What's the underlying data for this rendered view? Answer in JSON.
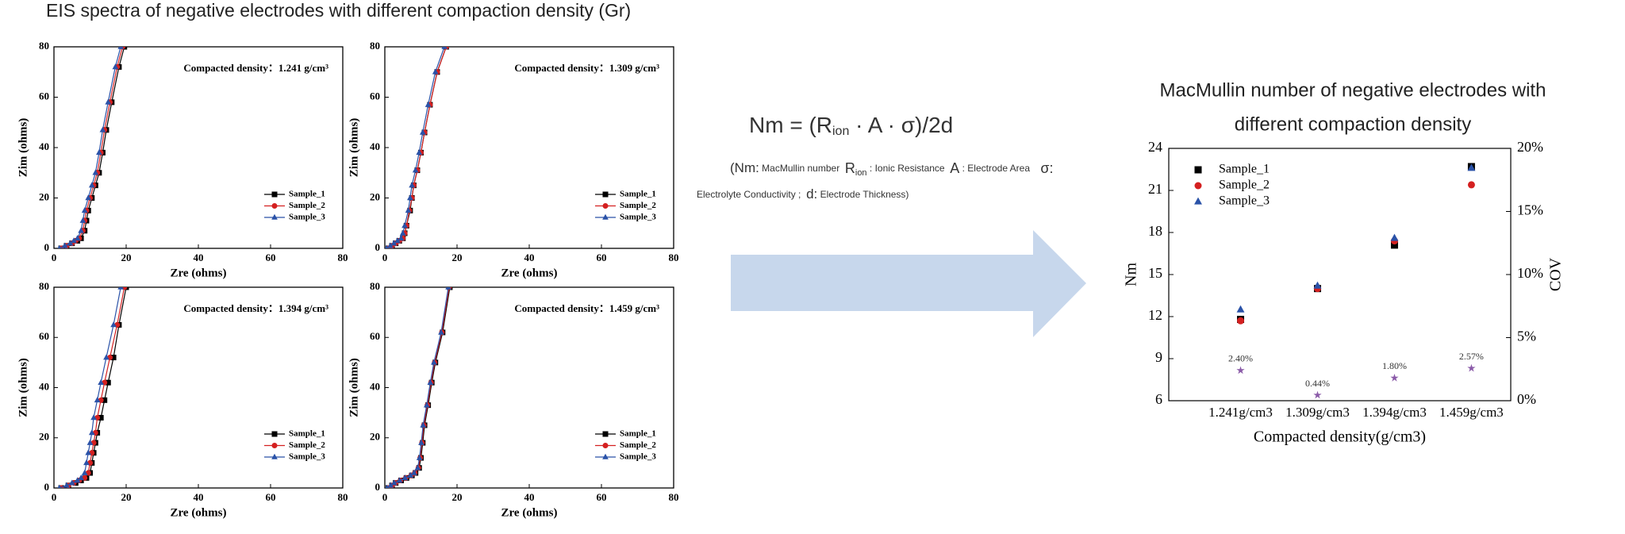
{
  "title": "EIS spectra of negative electrodes with different compaction density (Gr)",
  "formula": {
    "parts": [
      "Nm = (R",
      "ion",
      " · A · σ)/2d"
    ]
  },
  "notes": {
    "line1": [
      "(Nm:",
      " MacMullin number  ",
      "R",
      "ion",
      " : Ionic Resistance  ",
      "A",
      " : Electrode Area    ",
      "σ:"
    ],
    "line2": [
      "Electrolyte Conductivity ;  ",
      "d:",
      " Electrode Thickness)"
    ]
  },
  "chart_data": [
    {
      "type": "line",
      "annotation": "Compacted density：1.241 g/cm³",
      "x_label": "Zre (ohms)",
      "y_label": "Zim (ohms)",
      "xlim": [
        0,
        80
      ],
      "ylim": [
        0,
        80
      ],
      "xticks": [
        0,
        20,
        40,
        60,
        80
      ],
      "yticks": [
        0,
        20,
        40,
        60,
        80
      ],
      "legend": "lower right",
      "series": [
        {
          "name": "Sample_1",
          "color": "#000000",
          "marker": "square",
          "x": [
            2,
            3.5,
            5,
            6.5,
            7.5,
            8.5,
            9,
            9.5,
            10.5,
            11.5,
            12.5,
            13.5,
            14.5,
            16,
            18,
            19.5
          ],
          "values": [
            0,
            1,
            2,
            3,
            4,
            7,
            11,
            15,
            20,
            25,
            30,
            38,
            47,
            58,
            72,
            80
          ]
        },
        {
          "name": "Sample_2",
          "color": "#d42020",
          "marker": "circle",
          "x": [
            2,
            3.5,
            5,
            6,
            7,
            8,
            8.5,
            9,
            10,
            11,
            12,
            13,
            14,
            15.5,
            17.5,
            19
          ],
          "values": [
            0,
            1,
            2,
            3,
            4,
            7,
            11,
            15,
            20,
            25,
            30,
            38,
            47,
            58,
            72,
            80
          ]
        },
        {
          "name": "Sample_3",
          "color": "#2a52a8",
          "marker": "triangle",
          "x": [
            1.5,
            3,
            4.5,
            5.5,
            6.5,
            7.5,
            8,
            8.5,
            9.5,
            10.5,
            11.5,
            12.5,
            13.5,
            15,
            17,
            18.5
          ],
          "values": [
            0,
            1,
            2,
            3,
            4,
            7,
            11,
            15,
            20,
            25,
            30,
            38,
            47,
            58,
            72,
            80
          ]
        }
      ]
    },
    {
      "type": "line",
      "annotation": "Compacted density：1.309 g/cm³",
      "x_label": "Zre (ohms)",
      "y_label": "Zim (ohms)",
      "xlim": [
        0,
        80
      ],
      "ylim": [
        0,
        80
      ],
      "xticks": [
        0,
        20,
        40,
        60,
        80
      ],
      "yticks": [
        0,
        20,
        40,
        60,
        80
      ],
      "legend": "lower right",
      "series": [
        {
          "name": "Sample_1",
          "color": "#000000",
          "marker": "square",
          "x": [
            1,
            2,
            3,
            4,
            5,
            5.5,
            6,
            7,
            7.5,
            8,
            9,
            10,
            11,
            12.5,
            14.5,
            17
          ],
          "values": [
            0,
            1,
            2,
            3,
            4,
            6,
            9,
            15,
            20,
            25,
            31,
            38,
            46,
            57,
            70,
            80
          ]
        },
        {
          "name": "Sample_2",
          "color": "#d42020",
          "marker": "circle",
          "x": [
            1,
            2,
            3,
            4,
            5,
            5.5,
            6,
            6.8,
            7.5,
            8,
            9,
            10,
            11,
            12.5,
            14.5,
            17
          ],
          "values": [
            0,
            1,
            2,
            3,
            4,
            6,
            9,
            15,
            20,
            25,
            31,
            38,
            46,
            57,
            70,
            80
          ]
        },
        {
          "name": "Sample_3",
          "color": "#2a52a8",
          "marker": "triangle",
          "x": [
            0.5,
            1.5,
            2.5,
            3.5,
            4.5,
            5,
            5.5,
            6.5,
            7,
            7.5,
            8.5,
            9.5,
            10.5,
            12,
            14,
            16.5
          ],
          "values": [
            0,
            1,
            2,
            3,
            4,
            6,
            9,
            15,
            20,
            25,
            31,
            38,
            46,
            57,
            70,
            80
          ]
        }
      ]
    },
    {
      "type": "line",
      "annotation": "Compacted density：1.394 g/cm³",
      "x_label": "Zre (ohms)",
      "y_label": "Zim (ohms)",
      "xlim": [
        0,
        80
      ],
      "ylim": [
        0,
        80
      ],
      "xticks": [
        0,
        20,
        40,
        60,
        80
      ],
      "yticks": [
        0,
        20,
        40,
        60,
        80
      ],
      "legend": "lower right",
      "series": [
        {
          "name": "Sample_1",
          "color": "#000000",
          "marker": "square",
          "x": [
            2,
            4,
            6,
            7.5,
            9,
            10,
            10.5,
            11,
            11.5,
            12,
            13,
            14,
            15,
            16.5,
            18,
            20
          ],
          "values": [
            0,
            1,
            2,
            3,
            4,
            6,
            10,
            14,
            18,
            22,
            28,
            35,
            42,
            52,
            65,
            80
          ]
        },
        {
          "name": "Sample_2",
          "color": "#d42020",
          "marker": "circle",
          "x": [
            2,
            4,
            5.5,
            7,
            8.5,
            9.5,
            10,
            10.5,
            11,
            11.5,
            12,
            13,
            14,
            15.5,
            17.5,
            19.5
          ],
          "values": [
            0,
            1,
            2,
            3,
            4,
            6,
            10,
            14,
            18,
            22,
            28,
            35,
            42,
            52,
            65,
            80
          ]
        },
        {
          "name": "Sample_3",
          "color": "#2a52a8",
          "marker": "triangle",
          "x": [
            1.5,
            3.5,
            5,
            6.5,
            7.5,
            8.5,
            9,
            9.5,
            10,
            10.5,
            11,
            12,
            13,
            14.5,
            16.5,
            18.5
          ],
          "values": [
            0,
            1,
            2,
            3,
            4,
            6,
            10,
            14,
            18,
            22,
            28,
            35,
            42,
            52,
            65,
            80
          ]
        }
      ]
    },
    {
      "type": "line",
      "annotation": "Compacted density：1.459 g/cm³",
      "x_label": "Zre (ohms)",
      "y_label": "Zim (ohms)",
      "xlim": [
        0,
        80
      ],
      "ylim": [
        0,
        80
      ],
      "xticks": [
        0,
        20,
        40,
        60,
        80
      ],
      "yticks": [
        0,
        20,
        40,
        60,
        80
      ],
      "legend": "lower right",
      "series": [
        {
          "name": "Sample_1",
          "color": "#000000",
          "marker": "square",
          "x": [
            1,
            2,
            3,
            4.5,
            6,
            7.5,
            8.5,
            9.5,
            10,
            10.5,
            11,
            12,
            13,
            14,
            16,
            18
          ],
          "values": [
            0,
            1,
            2,
            3,
            4,
            5,
            6,
            8,
            12,
            18,
            25,
            33,
            42,
            50,
            62,
            80
          ]
        },
        {
          "name": "Sample_2",
          "color": "#d42020",
          "marker": "circle",
          "x": [
            1,
            2,
            3,
            4.3,
            5.8,
            7.3,
            8.3,
            9.3,
            9.8,
            10.3,
            10.8,
            11.8,
            12.8,
            13.8,
            15.8,
            17.8
          ],
          "values": [
            0,
            1,
            2,
            3,
            4,
            5,
            6,
            8,
            12,
            18,
            25,
            33,
            42,
            50,
            62,
            80
          ]
        },
        {
          "name": "Sample_3",
          "color": "#2a52a8",
          "marker": "triangle",
          "x": [
            0.6,
            1.6,
            2.6,
            4.1,
            5.6,
            7.1,
            8.1,
            9.1,
            9.6,
            10.1,
            10.6,
            11.6,
            12.6,
            13.6,
            15.6,
            17.6
          ],
          "values": [
            0,
            1,
            2,
            3,
            4,
            5,
            6,
            8,
            12,
            18,
            25,
            33,
            42,
            50,
            62,
            80
          ]
        }
      ]
    },
    {
      "type": "scatter",
      "title": [
        "MacMullin number of negative electrodes with",
        "different compaction density"
      ],
      "x_label": "Compacted density(g/cm3)",
      "y_label": "Nm",
      "y2_label": "COV",
      "categories": [
        "1.241g/cm3",
        "1.309g/cm3",
        "1.394g/cm3",
        "1.459g/cm3"
      ],
      "ylim": [
        6,
        24
      ],
      "yticks": [
        6,
        9,
        12,
        15,
        18,
        21,
        24
      ],
      "y2lim": [
        0,
        20
      ],
      "y2ticks": [
        {
          "value": 0,
          "label": "0%"
        },
        {
          "value": 5,
          "label": "5%"
        },
        {
          "value": 10,
          "label": "10%"
        },
        {
          "value": 15,
          "label": "15%"
        },
        {
          "value": 20,
          "label": "20%"
        }
      ],
      "legend": "upper left",
      "series": [
        {
          "name": "Sample_1",
          "color": "#000000",
          "marker": "square",
          "values": [
            11.8,
            14.0,
            17.1,
            22.7
          ]
        },
        {
          "name": "Sample_2",
          "color": "#d42020",
          "marker": "circle",
          "values": [
            11.7,
            14.0,
            17.4,
            21.4
          ]
        },
        {
          "name": "Sample_3",
          "color": "#2a52a8",
          "marker": "triangle",
          "values": [
            12.5,
            14.2,
            17.6,
            22.6
          ]
        },
        {
          "color": "#8a5aa8",
          "marker": "star",
          "axis": "y2",
          "values": [
            2.4,
            0.44,
            1.8,
            2.57
          ],
          "value_labels": [
            "2.40%",
            "0.44%",
            "1.80%",
            "2.57%"
          ]
        }
      ]
    }
  ]
}
